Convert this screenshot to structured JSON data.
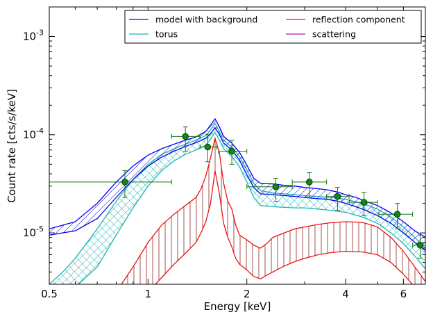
{
  "chart_data": {
    "type": "line",
    "xlabel": "Energy [keV]",
    "ylabel": "Count rate [cts/s/keV]",
    "xscale": "log",
    "yscale": "log",
    "xlim": [
      0.5,
      7.0
    ],
    "ylim": [
      3e-06,
      0.002
    ],
    "grid": false,
    "legend_position": "top-right",
    "xticks": [
      {
        "value": 0.5,
        "label": "0.5"
      },
      {
        "value": 1,
        "label": "1"
      },
      {
        "value": 2,
        "label": "2"
      },
      {
        "value": 4,
        "label": "4"
      },
      {
        "value": 6,
        "label": "6"
      }
    ],
    "yticks": [
      {
        "value": 1e-05,
        "base": "10",
        "exp": "-5"
      },
      {
        "value": 0.0001,
        "base": "10",
        "exp": "-4"
      },
      {
        "value": 0.001,
        "base": "10",
        "exp": "-3"
      }
    ],
    "legend": [
      {
        "label": "model with background",
        "color": "#0000ee"
      },
      {
        "label": "reflection component",
        "color": "#ee1111"
      },
      {
        "label": "torus",
        "color": "#1ab5b5"
      },
      {
        "label": "scattering",
        "color": "#bb11bb"
      }
    ],
    "data_points": [
      {
        "x": 0.85,
        "y": 3.3e-05,
        "xerr": [
          0.5,
          1.18
        ],
        "yerr": [
          2.3e-05,
          4.3e-05
        ]
      },
      {
        "x": 1.3,
        "y": 9.6e-05,
        "xerr": [
          1.18,
          1.44
        ],
        "yerr": [
          6.8e-05,
          0.00012
        ]
      },
      {
        "x": 1.52,
        "y": 7.5e-05,
        "xerr": [
          1.44,
          1.62
        ],
        "yerr": [
          5.3e-05,
          0.000101
        ]
      },
      {
        "x": 1.8,
        "y": 6.8e-05,
        "xerr": [
          1.64,
          2.0
        ],
        "yerr": [
          5e-05,
          8.8e-05
        ]
      },
      {
        "x": 2.45,
        "y": 2.95e-05,
        "xerr": [
          2.0,
          2.75
        ],
        "yerr": [
          2.1e-05,
          3.6e-05
        ]
      },
      {
        "x": 3.1,
        "y": 3.3e-05,
        "xerr": [
          2.75,
          3.5
        ],
        "yerr": [
          2.3e-05,
          4.1e-05
        ]
      },
      {
        "x": 3.78,
        "y": 2.35e-05,
        "xerr": [
          3.5,
          4.1
        ],
        "yerr": [
          1.7e-05,
          2.9e-05
        ]
      },
      {
        "x": 4.55,
        "y": 2.05e-05,
        "xerr": [
          4.1,
          5.0
        ],
        "yerr": [
          1.5e-05,
          2.6e-05
        ]
      },
      {
        "x": 5.75,
        "y": 1.55e-05,
        "xerr": [
          5.05,
          6.4
        ],
        "yerr": [
          1.1e-05,
          2e-05
        ]
      },
      {
        "x": 6.75,
        "y": 7.5e-06,
        "xerr": [
          6.4,
          7.0
        ],
        "yerr": [
          5.5e-06,
          9.5e-06
        ]
      }
    ],
    "series": [
      {
        "name": "model with background",
        "color": "#0000ee",
        "band": "hatch",
        "x": [
          0.5,
          0.6,
          0.7,
          0.8,
          0.9,
          1.0,
          1.1,
          1.2,
          1.3,
          1.4,
          1.5,
          1.55,
          1.6,
          1.65,
          1.7,
          1.8,
          1.9,
          2.0,
          2.1,
          2.2,
          2.4,
          2.6,
          2.8,
          3.0,
          3.2,
          3.5,
          3.8,
          4.0,
          4.3,
          4.6,
          5.0,
          5.5,
          6.0,
          6.5,
          7.0
        ],
        "upper": [
          1.1e-05,
          1.3e-05,
          2e-05,
          3.3e-05,
          4.8e-05,
          6.2e-05,
          7.2e-05,
          8e-05,
          8.8e-05,
          9.5e-05,
          0.000108,
          0.000125,
          0.000145,
          0.00012,
          9.6e-05,
          8.2e-05,
          6.6e-05,
          4.9e-05,
          3.6e-05,
          3.2e-05,
          3.15e-05,
          3.05e-05,
          3e-05,
          2.9e-05,
          2.85e-05,
          2.75e-05,
          2.6e-05,
          2.45e-05,
          2.3e-05,
          2.1e-05,
          1.9e-05,
          1.6e-05,
          1.3e-05,
          1.05e-05,
          9e-06
        ],
        "lower": [
          9.5e-06,
          1.05e-05,
          1.4e-05,
          2.3e-05,
          3.5e-05,
          4.8e-05,
          5.9e-05,
          6.8e-05,
          7.6e-05,
          8.3e-05,
          9.2e-05,
          0.000102,
          0.000118,
          0.0001,
          8.2e-05,
          7e-05,
          5.5e-05,
          3.9e-05,
          2.9e-05,
          2.5e-05,
          2.45e-05,
          2.4e-05,
          2.35e-05,
          2.3e-05,
          2.25e-05,
          2.2e-05,
          2.1e-05,
          2e-05,
          1.85e-05,
          1.7e-05,
          1.5e-05,
          1.25e-05,
          1e-05,
          8e-06,
          6.6e-06
        ]
      },
      {
        "name": "torus",
        "color": "#1ab5b5",
        "band": "crosshatch",
        "x": [
          0.5,
          0.55,
          0.6,
          0.7,
          0.8,
          0.9,
          1.0,
          1.1,
          1.2,
          1.3,
          1.4,
          1.5,
          1.55,
          1.6,
          1.65,
          1.7,
          1.8,
          1.9,
          2.0,
          2.1,
          2.2,
          2.4,
          2.6,
          2.8,
          3.0,
          3.3,
          3.6,
          4.0,
          4.5,
          5.0,
          5.5,
          6.0,
          6.5,
          7.0
        ],
        "upper": [
          3e-06,
          4e-06,
          5.5e-06,
          1.1e-05,
          2.1e-05,
          3.5e-05,
          5e-05,
          6.3e-05,
          7.2e-05,
          8e-05,
          8.8e-05,
          9.8e-05,
          0.000112,
          0.00013,
          0.000108,
          8.8e-05,
          7.5e-05,
          6e-05,
          4.4e-05,
          3.2e-05,
          2.7e-05,
          2.55e-05,
          2.5e-05,
          2.45e-05,
          2.4e-05,
          2.35e-05,
          2.3e-05,
          2.2e-05,
          2e-05,
          1.75e-05,
          1.45e-05,
          1.15e-05,
          9e-06,
          7e-06
        ],
        "lower": [
          2.2e-06,
          2.4e-06,
          2.8e-06,
          4.5e-06,
          9.5e-06,
          1.8e-05,
          3e-05,
          4.3e-05,
          5.4e-05,
          6.3e-05,
          7e-05,
          7.8e-05,
          9e-05,
          0.000105,
          8.8e-05,
          7.2e-05,
          6e-05,
          4.7e-05,
          3.3e-05,
          2.3e-05,
          1.9e-05,
          1.85e-05,
          1.82e-05,
          1.8e-05,
          1.8e-05,
          1.75e-05,
          1.7e-05,
          1.62e-05,
          1.45e-05,
          1.25e-05,
          1e-05,
          7.8e-06,
          5.8e-06,
          4.3e-06
        ]
      },
      {
        "name": "reflection component",
        "color": "#ee1111",
        "band": "vlines",
        "x": [
          0.8,
          0.9,
          1.0,
          1.1,
          1.2,
          1.3,
          1.4,
          1.45,
          1.5,
          1.55,
          1.6,
          1.65,
          1.7,
          1.75,
          1.8,
          1.85,
          1.9,
          2.0,
          2.1,
          2.2,
          2.3,
          2.4,
          2.6,
          2.8,
          3.0,
          3.3,
          3.6,
          4.0,
          4.5,
          5.0,
          5.5,
          6.0,
          6.5,
          7.0
        ],
        "upper": [
          2.5e-06,
          4.5e-06,
          8e-06,
          1.2e-05,
          1.55e-05,
          1.9e-05,
          2.3e-05,
          2.8e-05,
          3.8e-05,
          5.8e-05,
          9.2e-05,
          6.5e-05,
          3.2e-05,
          2.1e-05,
          1.75e-05,
          1.2e-05,
          9.5e-06,
          8.5e-06,
          7.5e-06,
          7e-06,
          7.8e-06,
          9e-06,
          1e-05,
          1.1e-05,
          1.15e-05,
          1.22e-05,
          1.27e-05,
          1.3e-05,
          1.28e-05,
          1.15e-05,
          9e-06,
          6.5e-06,
          4.5e-06,
          3.2e-06
        ],
        "lower": [
          1.5e-06,
          1.8e-06,
          2.5e-06,
          3.5e-06,
          4.8e-06,
          6.2e-06,
          8e-06,
          1e-05,
          1.3e-05,
          2e-05,
          4.3e-05,
          2.5e-05,
          1.25e-05,
          9e-06,
          7.2e-06,
          5.5e-06,
          4.8e-06,
          4.2e-06,
          3.6e-06,
          3.4e-06,
          3.7e-06,
          4e-06,
          4.6e-06,
          5.1e-06,
          5.5e-06,
          6e-06,
          6.3e-06,
          6.5e-06,
          6.4e-06,
          6e-06,
          5e-06,
          3.8e-06,
          2.8e-06,
          2e-06
        ]
      },
      {
        "name": "scattering",
        "color": "#bb11bb",
        "band": "none",
        "x": [],
        "upper": [],
        "lower": []
      }
    ]
  }
}
